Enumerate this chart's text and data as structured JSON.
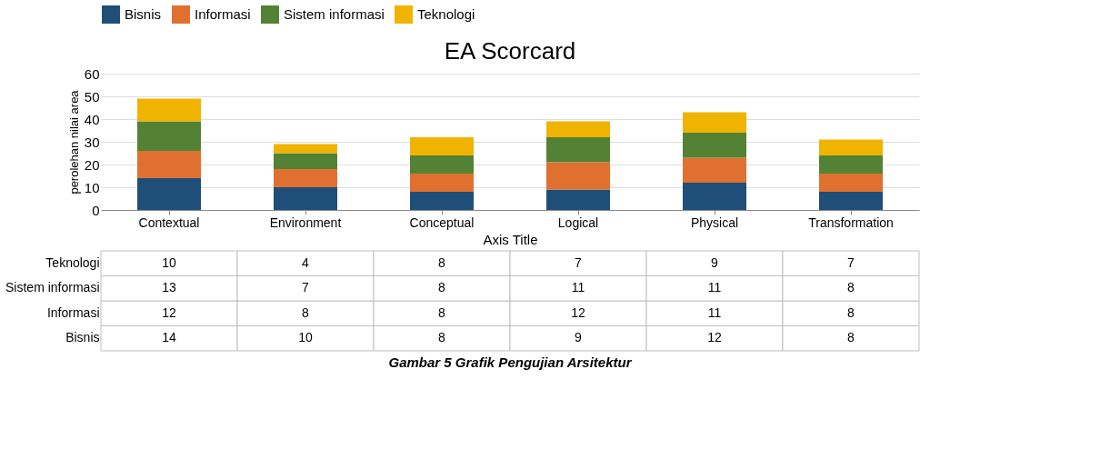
{
  "chart_data": {
    "type": "bar",
    "title": "EA Scorcard",
    "ylabel": "perolehan nilai area",
    "xlabel": "Axis Title",
    "stacked": true,
    "categories": [
      "Contextual",
      "Environment",
      "Conceptual",
      "Logical",
      "Physical",
      "Transformation"
    ],
    "series": [
      {
        "name": "Bisnis",
        "color": "#1f4e79",
        "values": [
          14,
          10,
          8,
          9,
          12,
          8
        ]
      },
      {
        "name": "Informasi",
        "color": "#e07030",
        "values": [
          12,
          8,
          8,
          12,
          11,
          8
        ]
      },
      {
        "name": "Sistem informasi",
        "color": "#548235",
        "values": [
          13,
          7,
          8,
          11,
          11,
          8
        ]
      },
      {
        "name": "Teknologi",
        "color": "#f0b400",
        "values": [
          10,
          4,
          8,
          7,
          9,
          7
        ]
      }
    ],
    "ylim": [
      0,
      60
    ],
    "yticks": [
      0,
      10,
      20,
      30,
      40,
      50,
      60
    ],
    "grid": "y",
    "legend": "top",
    "data_labels": true,
    "annotations": [
      "Gambar 5 Grafik Pengujian Arsitektur"
    ]
  }
}
